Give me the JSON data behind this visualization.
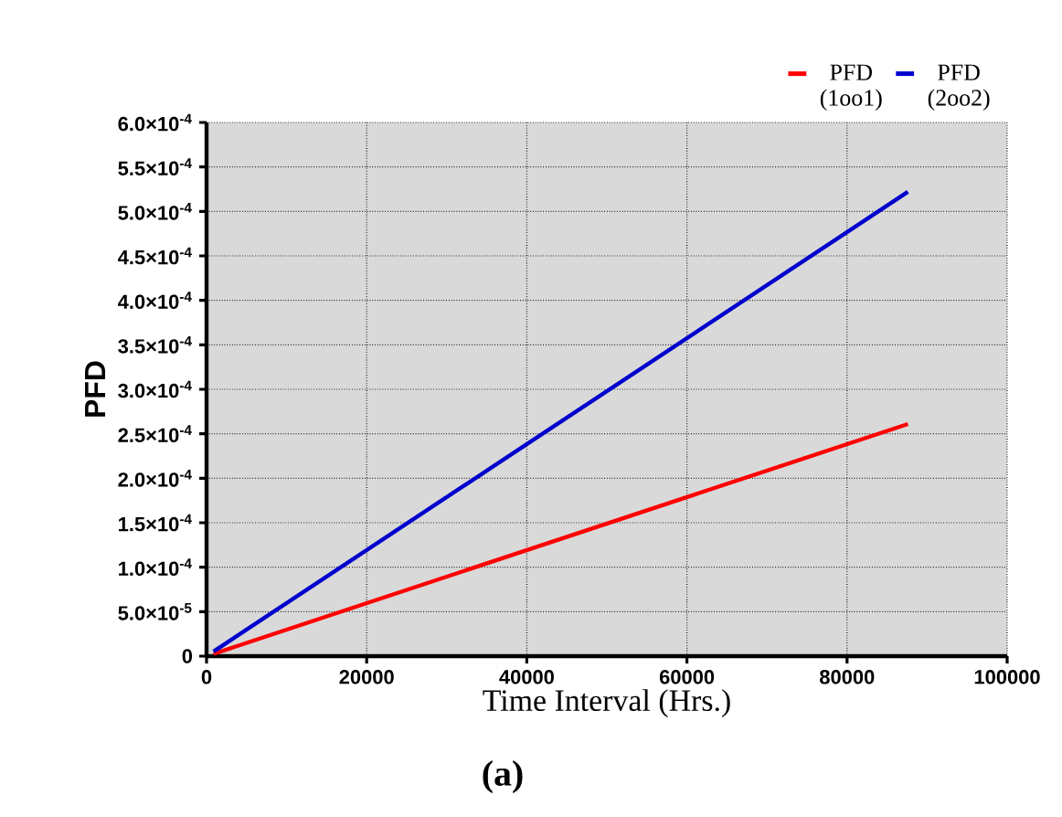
{
  "chart_data": {
    "type": "line",
    "xlabel": "Time Interval (Hrs.)",
    "ylabel": "PFD",
    "annotations": [
      "(a)"
    ],
    "xlim": [
      0,
      100000
    ],
    "xticks": [
      0,
      20000,
      40000,
      60000,
      80000,
      100000
    ],
    "ylim": [
      0,
      0.0006
    ],
    "yticks": [
      0,
      {
        "value": 5e-05,
        "label": "5.0×10$^{-5}$"
      },
      {
        "value": 0.0001,
        "label": "1.0×10$^{-4}$"
      },
      {
        "value": 0.00015,
        "label": "1.5×10$^{-4}$"
      },
      {
        "value": 0.0002,
        "label": "2.0×10$^{-4}$"
      },
      {
        "value": 0.00025,
        "label": "2.5×10$^{-4}$"
      },
      {
        "value": 0.0003,
        "label": "3.0×10$^{-4}$"
      },
      {
        "value": 0.00035,
        "label": "3.5×10$^{-4}$"
      },
      {
        "value": 0.0004,
        "label": "4.0×10$^{-4}$"
      },
      {
        "value": 0.00045,
        "label": "4.5×10$^{-4}$"
      },
      {
        "value": 0.0005,
        "label": "5.0×10$^{-4}$"
      },
      {
        "value": 0.00055,
        "label": "5.5×10$^{-4}$"
      },
      {
        "value": 0.0006,
        "label": "6.0×10$^{-4}$"
      }
    ],
    "x": [
      876,
      87600
    ],
    "series": [
      {
        "name": "PFD (1oo1)",
        "color": "#ff0000",
        "values": [
          2.6e-06,
          0.000261
        ]
      },
      {
        "name": "PFD (2oo2)",
        "color": "#0000cc",
        "values": [
          5.2e-06,
          0.000522
        ]
      }
    ],
    "grid": true,
    "legend": "top right"
  }
}
